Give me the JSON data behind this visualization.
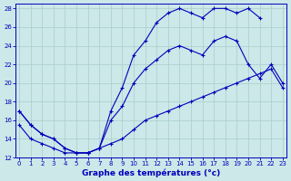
{
  "title": "Graphe des températures (°c)",
  "bg_color": "#cce8e8",
  "grid_color": "#aacccc",
  "line_color": "#0000bb",
  "xlim": [
    -0.3,
    23.3
  ],
  "ylim": [
    12,
    28.5
  ],
  "xticks": [
    0,
    1,
    2,
    3,
    4,
    5,
    6,
    7,
    8,
    9,
    10,
    11,
    12,
    13,
    14,
    15,
    16,
    17,
    18,
    19,
    20,
    21,
    22,
    23
  ],
  "yticks": [
    12,
    14,
    16,
    18,
    20,
    22,
    24,
    26,
    28
  ],
  "tick_fontsize": 5,
  "xlabel_fontsize": 6.5,
  "line1_x": [
    0,
    1,
    2,
    3,
    4,
    5,
    6,
    7,
    8,
    9,
    10,
    11,
    12,
    13,
    14,
    15,
    16,
    17,
    18,
    19,
    20,
    21
  ],
  "line1_y": [
    17,
    15.5,
    14.5,
    14,
    13,
    12.5,
    12.5,
    13,
    17,
    19.5,
    23,
    24.5,
    26.5,
    27.5,
    28,
    27.5,
    27,
    28,
    28,
    27.5,
    28,
    27
  ],
  "line2_x": [
    0,
    1,
    2,
    3,
    4,
    5,
    6,
    7,
    8,
    9,
    10,
    11,
    12,
    13,
    14,
    15,
    16,
    17,
    18,
    19,
    20,
    21,
    22,
    23
  ],
  "line2_y": [
    15.5,
    14,
    13.5,
    13,
    12.5,
    12.5,
    12.5,
    13,
    13.5,
    14,
    15,
    16,
    16.5,
    17,
    17.5,
    18,
    18.5,
    19,
    19.5,
    20,
    20.5,
    21,
    21.5,
    19.5
  ],
  "line3_x": [
    0,
    1,
    2,
    3,
    4,
    5,
    6,
    7,
    8,
    9,
    10,
    11,
    12,
    13,
    14,
    15,
    16,
    17,
    18,
    19,
    20,
    21,
    22,
    23
  ],
  "line3_y": [
    17,
    15.5,
    14.5,
    14,
    13,
    12.5,
    12.5,
    13,
    16,
    17.5,
    20,
    21.5,
    22.5,
    23.5,
    24,
    23.5,
    23,
    24.5,
    25,
    24.5,
    22,
    20.5,
    22,
    20
  ]
}
